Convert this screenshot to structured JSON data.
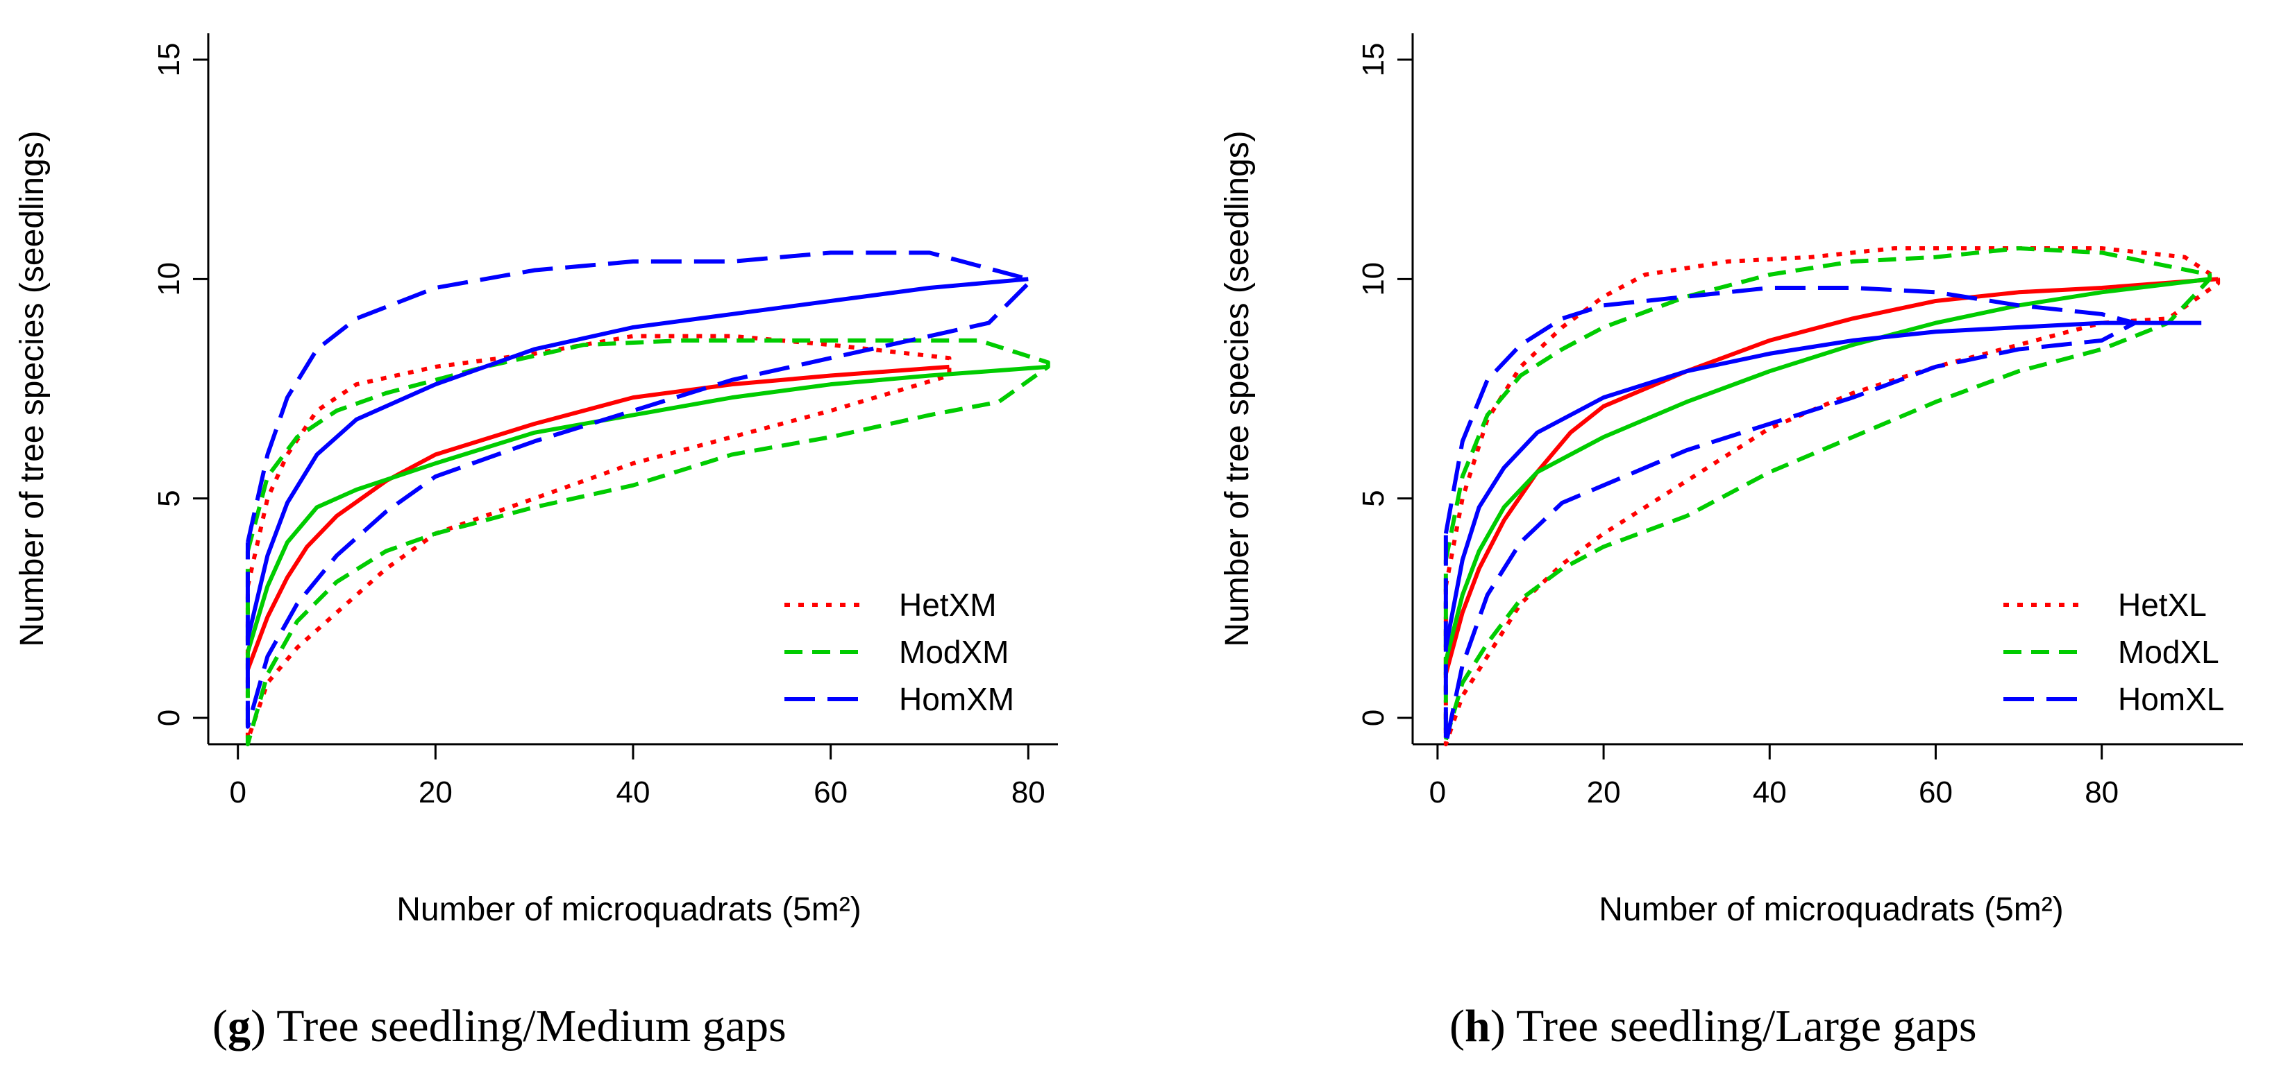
{
  "colors": {
    "Het": "#ff0000",
    "Mod": "#00cc00",
    "Hom": "#0000ff"
  },
  "chart_data": [
    {
      "type": "line",
      "panel_letter": "g",
      "caption_text": ") Tree seedling/Medium gaps",
      "xlabel": "Number of microquadrats (5m²)",
      "ylabel": "Number of tree species (seedlings)",
      "xlim": [
        -3,
        83
      ],
      "ylim": [
        -0.6,
        15.6
      ],
      "xticks": [
        0,
        20,
        40,
        60,
        80
      ],
      "yticks": [
        0,
        5,
        10,
        15
      ],
      "legend_position": "bottom-right",
      "grid": false,
      "series": [
        {
          "name": "HetXM",
          "group": "Het",
          "style": "dotted",
          "mean": [
            [
              1,
              1.1
            ],
            [
              3,
              2.3
            ],
            [
              5,
              3.2
            ],
            [
              7,
              3.9
            ],
            [
              10,
              4.6
            ],
            [
              15,
              5.4
            ],
            [
              20,
              6.0
            ],
            [
              30,
              6.7
            ],
            [
              40,
              7.3
            ],
            [
              50,
              7.6
            ],
            [
              60,
              7.8
            ],
            [
              72,
              8.0
            ]
          ],
          "upper": [
            [
              1,
              3.0
            ],
            [
              3,
              5.0
            ],
            [
              5,
              6.0
            ],
            [
              8,
              7.0
            ],
            [
              12,
              7.6
            ],
            [
              20,
              8.0
            ],
            [
              30,
              8.3
            ],
            [
              40,
              8.7
            ],
            [
              50,
              8.7
            ],
            [
              60,
              8.5
            ],
            [
              72,
              8.2
            ]
          ],
          "lower": [
            [
              1,
              -0.5
            ],
            [
              3,
              0.8
            ],
            [
              6,
              1.6
            ],
            [
              10,
              2.4
            ],
            [
              15,
              3.4
            ],
            [
              20,
              4.2
            ],
            [
              30,
              5.0
            ],
            [
              40,
              5.8
            ],
            [
              50,
              6.4
            ],
            [
              60,
              7.0
            ],
            [
              72,
              7.8
            ]
          ]
        },
        {
          "name": "ModXM",
          "group": "Mod",
          "style": "dashed",
          "mean": [
            [
              1,
              1.5
            ],
            [
              3,
              3.0
            ],
            [
              5,
              4.0
            ],
            [
              8,
              4.8
            ],
            [
              12,
              5.2
            ],
            [
              20,
              5.8
            ],
            [
              30,
              6.5
            ],
            [
              40,
              6.9
            ],
            [
              50,
              7.3
            ],
            [
              60,
              7.6
            ],
            [
              70,
              7.8
            ],
            [
              82,
              8.0
            ]
          ],
          "upper": [
            [
              1,
              3.8
            ],
            [
              3,
              5.5
            ],
            [
              6,
              6.4
            ],
            [
              10,
              7.0
            ],
            [
              15,
              7.4
            ],
            [
              25,
              8.0
            ],
            [
              35,
              8.5
            ],
            [
              45,
              8.6
            ],
            [
              60,
              8.6
            ],
            [
              75,
              8.6
            ],
            [
              82,
              8.1
            ]
          ],
          "lower": [
            [
              1,
              -0.6
            ],
            [
              3,
              1.0
            ],
            [
              6,
              2.2
            ],
            [
              10,
              3.1
            ],
            [
              15,
              3.8
            ],
            [
              20,
              4.2
            ],
            [
              30,
              4.8
            ],
            [
              40,
              5.3
            ],
            [
              50,
              6.0
            ],
            [
              60,
              6.4
            ],
            [
              70,
              6.9
            ],
            [
              77,
              7.2
            ],
            [
              82,
              8.0
            ]
          ]
        },
        {
          "name": "HomXM",
          "group": "Hom",
          "style": "longdash",
          "mean": [
            [
              1,
              1.8
            ],
            [
              3,
              3.7
            ],
            [
              5,
              4.9
            ],
            [
              8,
              6.0
            ],
            [
              12,
              6.8
            ],
            [
              20,
              7.6
            ],
            [
              30,
              8.4
            ],
            [
              40,
              8.9
            ],
            [
              50,
              9.2
            ],
            [
              60,
              9.5
            ],
            [
              70,
              9.8
            ],
            [
              80,
              10.0
            ]
          ],
          "upper": [
            [
              1,
              4.0
            ],
            [
              3,
              6.0
            ],
            [
              5,
              7.3
            ],
            [
              8,
              8.4
            ],
            [
              12,
              9.1
            ],
            [
              20,
              9.8
            ],
            [
              30,
              10.2
            ],
            [
              40,
              10.4
            ],
            [
              50,
              10.4
            ],
            [
              60,
              10.6
            ],
            [
              70,
              10.6
            ],
            [
              80,
              10.0
            ]
          ],
          "lower": [
            [
              1,
              -0.2
            ],
            [
              3,
              1.4
            ],
            [
              6,
              2.6
            ],
            [
              10,
              3.7
            ],
            [
              15,
              4.7
            ],
            [
              20,
              5.5
            ],
            [
              30,
              6.3
            ],
            [
              40,
              7.0
            ],
            [
              50,
              7.7
            ],
            [
              60,
              8.2
            ],
            [
              70,
              8.7
            ],
            [
              76,
              9.0
            ],
            [
              80,
              9.9
            ]
          ]
        }
      ],
      "legend": [
        "HetXM",
        "ModXM",
        "HomXM"
      ]
    },
    {
      "type": "line",
      "panel_letter": "h",
      "caption_text": ") Tree seedling/Large gaps",
      "xlabel": "Number of microquadrats (5m²)",
      "ylabel": "Number of tree species (seedlings)",
      "xlim": [
        -3,
        97
      ],
      "ylim": [
        -0.6,
        15.6
      ],
      "xticks": [
        0,
        20,
        40,
        60,
        80
      ],
      "yticks": [
        0,
        5,
        10,
        15
      ],
      "legend_position": "bottom-right",
      "grid": false,
      "series": [
        {
          "name": "HetXL",
          "group": "Het",
          "style": "dotted",
          "mean": [
            [
              1,
              1.0
            ],
            [
              3,
              2.4
            ],
            [
              5,
              3.4
            ],
            [
              8,
              4.5
            ],
            [
              12,
              5.6
            ],
            [
              16,
              6.5
            ],
            [
              20,
              7.1
            ],
            [
              30,
              7.9
            ],
            [
              40,
              8.6
            ],
            [
              50,
              9.1
            ],
            [
              60,
              9.5
            ],
            [
              70,
              9.7
            ],
            [
              80,
              9.8
            ],
            [
              94,
              10.0
            ]
          ],
          "upper": [
            [
              1,
              3.0
            ],
            [
              3,
              5.0
            ],
            [
              6,
              6.8
            ],
            [
              10,
              8.0
            ],
            [
              15,
              8.9
            ],
            [
              20,
              9.6
            ],
            [
              25,
              10.1
            ],
            [
              35,
              10.4
            ],
            [
              45,
              10.5
            ],
            [
              55,
              10.7
            ],
            [
              65,
              10.7
            ],
            [
              80,
              10.7
            ],
            [
              90,
              10.5
            ],
            [
              94,
              10.0
            ]
          ],
          "lower": [
            [
              1,
              -0.6
            ],
            [
              3,
              0.5
            ],
            [
              6,
              1.4
            ],
            [
              10,
              2.6
            ],
            [
              15,
              3.5
            ],
            [
              20,
              4.2
            ],
            [
              30,
              5.4
            ],
            [
              40,
              6.6
            ],
            [
              50,
              7.4
            ],
            [
              60,
              8.0
            ],
            [
              70,
              8.5
            ],
            [
              80,
              9.0
            ],
            [
              88,
              9.1
            ],
            [
              94,
              9.9
            ]
          ]
        },
        {
          "name": "ModXL",
          "group": "Mod",
          "style": "dashed",
          "mean": [
            [
              1,
              1.3
            ],
            [
              3,
              2.8
            ],
            [
              5,
              3.8
            ],
            [
              8,
              4.8
            ],
            [
              12,
              5.6
            ],
            [
              20,
              6.4
            ],
            [
              30,
              7.2
            ],
            [
              40,
              7.9
            ],
            [
              50,
              8.5
            ],
            [
              60,
              9.0
            ],
            [
              70,
              9.4
            ],
            [
              80,
              9.7
            ],
            [
              93,
              10.0
            ]
          ],
          "upper": [
            [
              1,
              3.6
            ],
            [
              3,
              5.5
            ],
            [
              6,
              6.9
            ],
            [
              10,
              7.8
            ],
            [
              15,
              8.4
            ],
            [
              20,
              8.9
            ],
            [
              30,
              9.6
            ],
            [
              40,
              10.1
            ],
            [
              50,
              10.4
            ],
            [
              60,
              10.5
            ],
            [
              70,
              10.7
            ],
            [
              80,
              10.6
            ],
            [
              93,
              10.1
            ]
          ],
          "lower": [
            [
              1,
              -0.5
            ],
            [
              3,
              0.8
            ],
            [
              6,
              1.7
            ],
            [
              10,
              2.7
            ],
            [
              15,
              3.4
            ],
            [
              20,
              3.9
            ],
            [
              30,
              4.6
            ],
            [
              40,
              5.6
            ],
            [
              50,
              6.4
            ],
            [
              60,
              7.2
            ],
            [
              70,
              7.9
            ],
            [
              80,
              8.4
            ],
            [
              88,
              9.0
            ],
            [
              93,
              10.0
            ]
          ]
        },
        {
          "name": "HomXL",
          "group": "Hom",
          "style": "longdash",
          "mean": [
            [
              1,
              1.6
            ],
            [
              3,
              3.6
            ],
            [
              5,
              4.8
            ],
            [
              8,
              5.7
            ],
            [
              12,
              6.5
            ],
            [
              20,
              7.3
            ],
            [
              30,
              7.9
            ],
            [
              40,
              8.3
            ],
            [
              50,
              8.6
            ],
            [
              60,
              8.8
            ],
            [
              70,
              8.9
            ],
            [
              80,
              9.0
            ],
            [
              92,
              9.0
            ]
          ],
          "upper": [
            [
              1,
              4.2
            ],
            [
              3,
              6.3
            ],
            [
              6,
              7.7
            ],
            [
              10,
              8.5
            ],
            [
              15,
              9.1
            ],
            [
              20,
              9.4
            ],
            [
              30,
              9.6
            ],
            [
              40,
              9.8
            ],
            [
              50,
              9.8
            ],
            [
              60,
              9.7
            ],
            [
              70,
              9.4
            ],
            [
              80,
              9.2
            ],
            [
              84,
              9.0
            ]
          ],
          "lower": [
            [
              1,
              -0.6
            ],
            [
              3,
              1.2
            ],
            [
              6,
              2.8
            ],
            [
              10,
              4.0
            ],
            [
              15,
              4.9
            ],
            [
              20,
              5.3
            ],
            [
              30,
              6.1
            ],
            [
              40,
              6.7
            ],
            [
              50,
              7.3
            ],
            [
              60,
              8.0
            ],
            [
              70,
              8.4
            ],
            [
              80,
              8.6
            ],
            [
              84,
              9.0
            ]
          ]
        }
      ],
      "legend": [
        "HetXL",
        "ModXL",
        "HomXL"
      ]
    }
  ]
}
